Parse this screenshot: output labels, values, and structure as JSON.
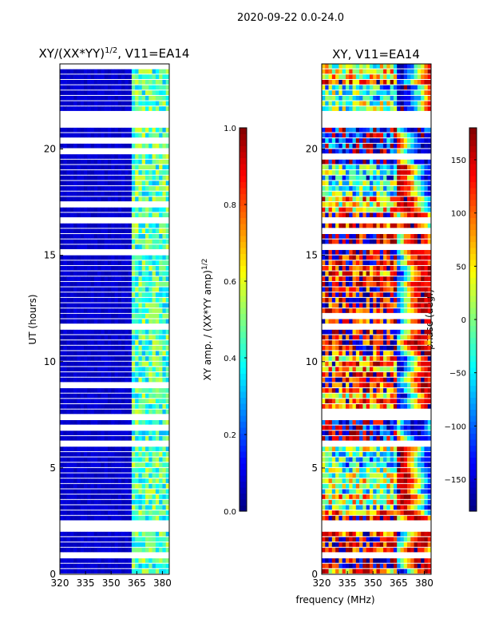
{
  "suptitle": "2020-09-22 0.0-24.0",
  "chart_data": [
    {
      "type": "heatmap",
      "title": "XY/(XX*YY)",
      "title_sup": "1/2",
      "title_suffix": ", V11=EA14",
      "xlabel": "frequency (MHz)",
      "ylabel": "UT (hours)",
      "xlim": [
        320,
        384
      ],
      "ylim": [
        0,
        24
      ],
      "xticks": [
        "320",
        "335",
        "350",
        "365",
        "380"
      ],
      "xtick_values": [
        320,
        335,
        350,
        365,
        380
      ],
      "yticks": [
        "0",
        "5",
        "10",
        "15",
        "20"
      ],
      "ytick_values": [
        0,
        5,
        10,
        15,
        20
      ],
      "colormap": "jet",
      "colorbar": {
        "label": "XY amp. / (XX*YY amp)",
        "label_sup": "1/2",
        "range": [
          0.0,
          1.0
        ],
        "ticks": [
          "0.0",
          "0.2",
          "0.4",
          "0.6",
          "0.8",
          "1.0"
        ],
        "tick_values": [
          0,
          0.2,
          0.4,
          0.6,
          0.8,
          1.0
        ]
      },
      "pattern": {
        "background_value": 0.05,
        "rfi_band_mhz": [
          362,
          383
        ],
        "rfi_band_value": 0.45
      },
      "flagged_hours": [
        [
          21.35,
          21.6
        ],
        [
          21.05,
          21.15
        ],
        [
          16.6,
          16.8
        ],
        [
          11.6,
          11.75
        ],
        [
          7.2,
          7.4
        ],
        [
          6.0,
          6.1
        ],
        [
          2.1,
          2.35
        ],
        [
          0.8,
          0.85
        ]
      ]
    },
    {
      "type": "heatmap",
      "title": "XY, V11=EA14",
      "xlim": [
        320,
        384
      ],
      "ylim": [
        0,
        24
      ],
      "xticks": [
        "320",
        "335",
        "350",
        "365",
        "380"
      ],
      "xtick_values": [
        320,
        335,
        350,
        365,
        380
      ],
      "yticks": [
        "0",
        "5",
        "10",
        "15",
        "20"
      ],
      "ytick_values": [
        0,
        5,
        10,
        15,
        20
      ],
      "colormap": "jet",
      "colorbar": {
        "label": "phase (deg.)",
        "range": [
          -180,
          180
        ],
        "ticks": [
          "−150",
          "−100",
          "−50",
          "0",
          "50",
          "100",
          "150"
        ],
        "tick_values": [
          -150,
          -100,
          -50,
          0,
          50,
          100,
          150
        ]
      },
      "flagged_hours": [
        [
          21.35,
          21.6
        ],
        [
          21.05,
          21.15
        ],
        [
          16.6,
          16.8
        ],
        [
          11.6,
          11.75
        ],
        [
          7.2,
          7.4
        ],
        [
          6.0,
          6.1
        ],
        [
          2.1,
          2.35
        ],
        [
          0.8,
          0.85
        ]
      ]
    }
  ]
}
